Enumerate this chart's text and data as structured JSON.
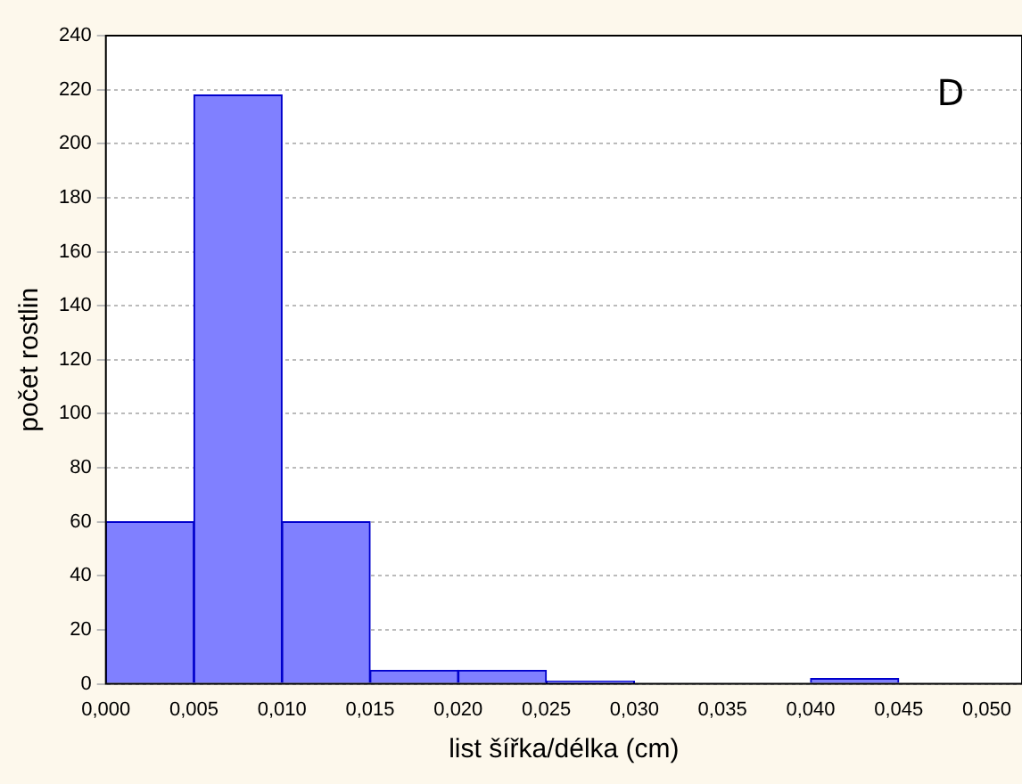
{
  "chart_data": {
    "type": "histogram",
    "xlabel": "list šířka/délka (cm)",
    "ylabel": "počet rostlin",
    "annotations": [
      "D"
    ],
    "bins": [
      0,
      0.005,
      0.01,
      0.015,
      0.02,
      0.025,
      0.03,
      0.035,
      0.04,
      0.045
    ],
    "values": [
      60,
      218,
      60,
      5,
      5,
      1,
      0,
      0,
      2
    ],
    "color": "#8080ff",
    "xlim": [
      0,
      0.052
    ],
    "xticks": [
      {
        "value": 0,
        "label": "0,000"
      },
      {
        "value": 0.005,
        "label": "0,005"
      },
      {
        "value": 0.01,
        "label": "0,010"
      },
      {
        "value": 0.015,
        "label": "0,015"
      },
      {
        "value": 0.02,
        "label": "0,020"
      },
      {
        "value": 0.025,
        "label": "0,025"
      },
      {
        "value": 0.03,
        "label": "0,030"
      },
      {
        "value": 0.035,
        "label": "0,035"
      },
      {
        "value": 0.04,
        "label": "0,040"
      },
      {
        "value": 0.045,
        "label": "0,045"
      },
      {
        "value": 0.05,
        "label": "0,050"
      }
    ],
    "ylim": [
      0,
      240
    ],
    "yticks": [
      0,
      20,
      40,
      60,
      80,
      100,
      120,
      140,
      160,
      180,
      200,
      220,
      240
    ],
    "grid": "y",
    "legend": false
  }
}
